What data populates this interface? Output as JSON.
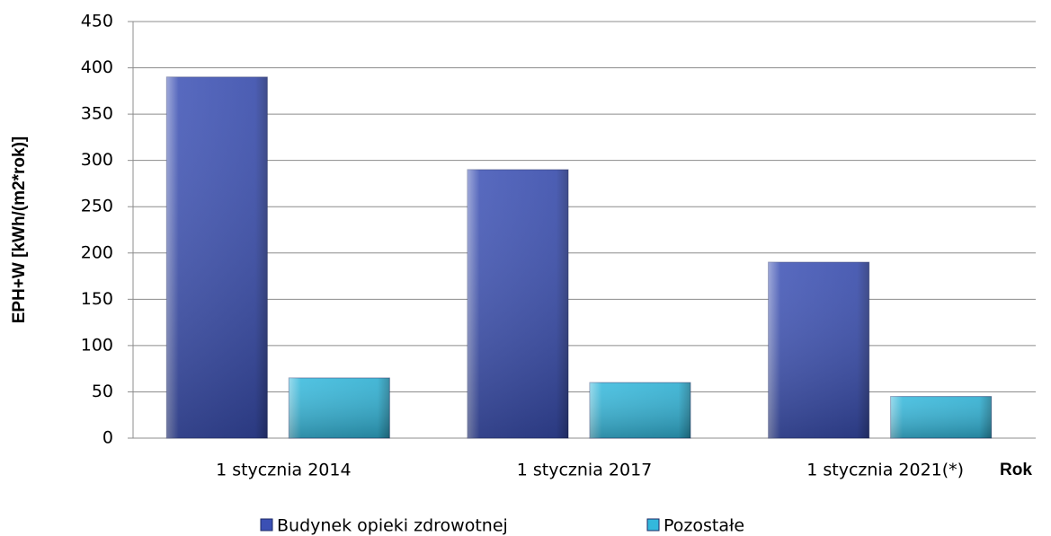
{
  "chart_data": {
    "type": "bar",
    "ylabel": "EPH+W [kWh/(m2*rok)]",
    "xlabel": "Rok",
    "categories": [
      "1 stycznia 2014",
      "1 stycznia 2017",
      "1 stycznia 2021(*)"
    ],
    "series": [
      {
        "name": "Budynek opieki zdrowotnej",
        "color": "#3b50b4",
        "values": [
          390,
          290,
          190
        ]
      },
      {
        "name": "Pozostałe",
        "color": "#33b8dc",
        "values": [
          65,
          60,
          45
        ]
      }
    ],
    "ylim": [
      0,
      450
    ],
    "yticks": [
      0,
      50,
      100,
      150,
      200,
      250,
      300,
      350,
      400,
      450
    ],
    "grid": true,
    "legend": "bottom"
  }
}
